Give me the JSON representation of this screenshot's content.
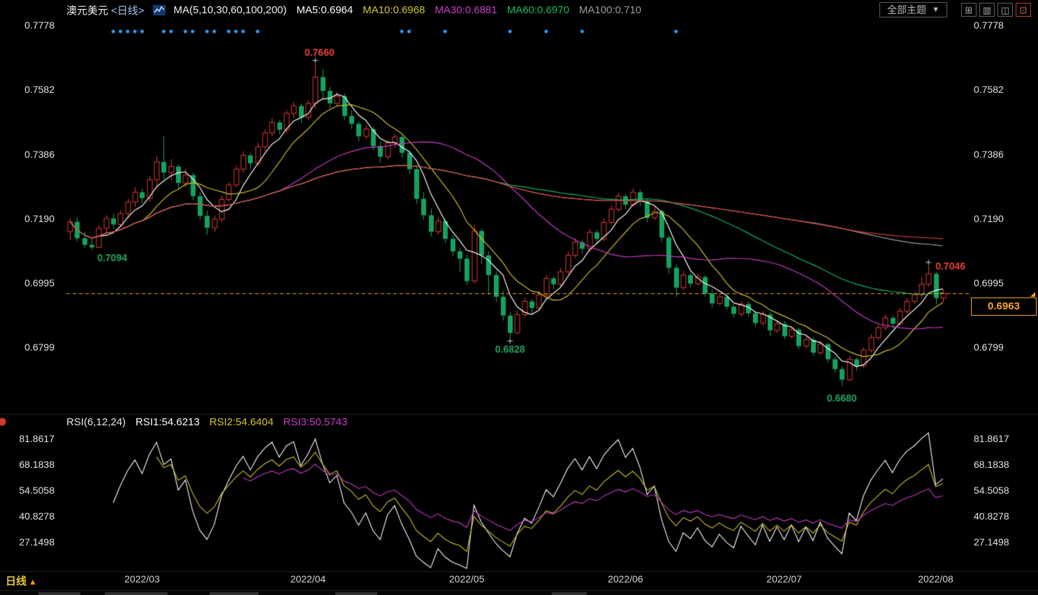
{
  "header": {
    "symbol": "澳元美元",
    "period_tag": "<日线>",
    "ma_legend": [
      {
        "label": "MA(5,10,30,60,100,200)",
        "color": "#eef0f5"
      },
      {
        "label": "MA5:0.6964",
        "color": "#ffffff"
      },
      {
        "label": "MA10:0.6968",
        "color": "#d4c42a"
      },
      {
        "label": "MA30:0.6881",
        "color": "#c93cc9"
      },
      {
        "label": "MA60:0.6970",
        "color": "#14b860"
      },
      {
        "label": "MA100:0.710",
        "color": "#9a9a9a"
      }
    ],
    "theme_button": {
      "label": "全部主题",
      "caret": "▼"
    },
    "window_buttons": [
      {
        "name": "layout-grid-button",
        "glyph": "⊞",
        "accent": false
      },
      {
        "name": "panel-bars-button",
        "glyph": "▥",
        "accent": false
      },
      {
        "name": "panel-split-button",
        "glyph": "◫",
        "accent": false
      },
      {
        "name": "panel-export-button",
        "glyph": "⊡",
        "accent": true
      }
    ]
  },
  "footer": {
    "period_label": "日线",
    "period_arrow": "▲"
  },
  "chart_data": {
    "type": "candlestick",
    "title": "澳元美元 日线 (AUD/USD Daily)",
    "colors": {
      "up": "#e23b33",
      "down": "#14a35f"
    },
    "price_axis_ticks": [
      {
        "label": "0.7778",
        "value": 0.7778
      },
      {
        "label": "0.7582",
        "value": 0.7582
      },
      {
        "label": "0.7386",
        "value": 0.7386
      },
      {
        "label": "0.7190",
        "value": 0.719
      },
      {
        "label": "0.6995",
        "value": 0.6995
      },
      {
        "label": "0.6799",
        "value": 0.6799
      }
    ],
    "x_ticks": [
      {
        "label": "2022/03",
        "idx": 10
      },
      {
        "label": "2022/04",
        "idx": 33
      },
      {
        "label": "2022/05",
        "idx": 55
      },
      {
        "label": "2022/06",
        "idx": 77
      },
      {
        "label": "2022/07",
        "idx": 99
      },
      {
        "label": "2022/08",
        "idx": 120
      }
    ],
    "current_price": {
      "value": "0.6963",
      "line_color": "#f5a522"
    },
    "ma_overlays": [
      {
        "period": 5,
        "color": "#ffffff"
      },
      {
        "period": 10,
        "color": "#d4c42a"
      },
      {
        "period": 30,
        "color": "#c93cc9"
      },
      {
        "period": 60,
        "color": "#14b860"
      },
      {
        "period": 100,
        "color": "#9aa0a6"
      },
      {
        "period": 200,
        "color": "#d23c32"
      }
    ],
    "annotations": [
      {
        "label": "0.7094",
        "idx": 3,
        "at": "low",
        "color": "#25a55f",
        "placement": "below-right",
        "cross": false
      },
      {
        "label": "0.7660",
        "idx": 34,
        "at": "high",
        "color": "#e8413a",
        "placement": "above-center",
        "cross": true
      },
      {
        "label": "0.6828",
        "idx": 61,
        "at": "low",
        "color": "#25a55f",
        "placement": "below-center",
        "cross": true
      },
      {
        "label": "0.6680",
        "idx": 107,
        "at": "low",
        "color": "#25a55f",
        "placement": "below-center",
        "cross": false
      },
      {
        "label": "0.7046",
        "idx": 119,
        "at": "high",
        "color": "#e8413a",
        "placement": "right",
        "cross": true
      }
    ],
    "signal_dots": {
      "color": "#2e9bf0",
      "indices": [
        6,
        7,
        8,
        9,
        10,
        13,
        14,
        16,
        17,
        19,
        20,
        22,
        23,
        24,
        26,
        46,
        47,
        52,
        61,
        66,
        71,
        84
      ]
    },
    "candles": [
      [
        0.715,
        0.719,
        0.7125,
        0.718
      ],
      [
        0.718,
        0.7195,
        0.712,
        0.713
      ],
      [
        0.713,
        0.715,
        0.71,
        0.711
      ],
      [
        0.711,
        0.713,
        0.7094,
        0.7102
      ],
      [
        0.7102,
        0.717,
        0.71,
        0.716
      ],
      [
        0.716,
        0.72,
        0.7145,
        0.719
      ],
      [
        0.719,
        0.7205,
        0.716,
        0.7172
      ],
      [
        0.7172,
        0.7215,
        0.7165,
        0.7205
      ],
      [
        0.7205,
        0.725,
        0.719,
        0.724
      ],
      [
        0.724,
        0.7285,
        0.7225,
        0.727
      ],
      [
        0.727,
        0.728,
        0.7235,
        0.7252
      ],
      [
        0.7252,
        0.732,
        0.724,
        0.7308
      ],
      [
        0.7308,
        0.738,
        0.729,
        0.7362
      ],
      [
        0.7362,
        0.744,
        0.731,
        0.733
      ],
      [
        0.733,
        0.737,
        0.7305,
        0.7348
      ],
      [
        0.7348,
        0.7355,
        0.728,
        0.7298
      ],
      [
        0.7298,
        0.734,
        0.7285,
        0.7322
      ],
      [
        0.7322,
        0.733,
        0.7245,
        0.7258
      ],
      [
        0.7258,
        0.727,
        0.7185,
        0.7198
      ],
      [
        0.7198,
        0.7215,
        0.714,
        0.7162
      ],
      [
        0.7162,
        0.72,
        0.715,
        0.7188
      ],
      [
        0.7188,
        0.726,
        0.718,
        0.7248
      ],
      [
        0.7248,
        0.73,
        0.724,
        0.7292
      ],
      [
        0.7292,
        0.735,
        0.7285,
        0.734
      ],
      [
        0.734,
        0.7395,
        0.733,
        0.7382
      ],
      [
        0.7382,
        0.739,
        0.734,
        0.7358
      ],
      [
        0.7358,
        0.742,
        0.735,
        0.7408
      ],
      [
        0.7408,
        0.7462,
        0.7395,
        0.745
      ],
      [
        0.745,
        0.7495,
        0.744,
        0.7482
      ],
      [
        0.7482,
        0.749,
        0.7445,
        0.746
      ],
      [
        0.746,
        0.752,
        0.745,
        0.751
      ],
      [
        0.751,
        0.7545,
        0.7495,
        0.7532
      ],
      [
        0.7532,
        0.754,
        0.748,
        0.7498
      ],
      [
        0.7498,
        0.755,
        0.749,
        0.754
      ],
      [
        0.754,
        0.766,
        0.7525,
        0.762
      ],
      [
        0.762,
        0.7645,
        0.7555,
        0.7578
      ],
      [
        0.7578,
        0.759,
        0.7525,
        0.754
      ],
      [
        0.754,
        0.7575,
        0.753,
        0.7562
      ],
      [
        0.7562,
        0.757,
        0.749,
        0.7502
      ],
      [
        0.7502,
        0.752,
        0.7462,
        0.7478
      ],
      [
        0.7478,
        0.7485,
        0.7425,
        0.744
      ],
      [
        0.744,
        0.7475,
        0.743,
        0.7462
      ],
      [
        0.7462,
        0.747,
        0.7398,
        0.741
      ],
      [
        0.741,
        0.7425,
        0.736,
        0.7378
      ],
      [
        0.7378,
        0.743,
        0.737,
        0.742
      ],
      [
        0.742,
        0.7448,
        0.7405,
        0.7438
      ],
      [
        0.7438,
        0.7445,
        0.7375,
        0.739
      ],
      [
        0.739,
        0.7398,
        0.7325,
        0.734
      ],
      [
        0.734,
        0.735,
        0.7235,
        0.725
      ],
      [
        0.725,
        0.727,
        0.7185,
        0.72
      ],
      [
        0.72,
        0.722,
        0.7135,
        0.715
      ],
      [
        0.715,
        0.7195,
        0.714,
        0.7182
      ],
      [
        0.7182,
        0.719,
        0.7115,
        0.7128
      ],
      [
        0.7128,
        0.714,
        0.7075,
        0.709
      ],
      [
        0.709,
        0.71,
        0.7028,
        0.7068
      ],
      [
        0.7068,
        0.708,
        0.6988,
        0.7
      ],
      [
        0.7,
        0.7172,
        0.6992,
        0.7152
      ],
      [
        0.7152,
        0.716,
        0.7052,
        0.7078
      ],
      [
        0.7078,
        0.709,
        0.6958,
        0.7018
      ],
      [
        0.7018,
        0.703,
        0.6935,
        0.6952
      ],
      [
        0.6952,
        0.697,
        0.688,
        0.6895
      ],
      [
        0.6895,
        0.6905,
        0.6828,
        0.6842
      ],
      [
        0.6842,
        0.691,
        0.6838,
        0.6898
      ],
      [
        0.6898,
        0.695,
        0.689,
        0.6938
      ],
      [
        0.6938,
        0.6945,
        0.69,
        0.6918
      ],
      [
        0.6918,
        0.697,
        0.691,
        0.6958
      ],
      [
        0.6958,
        0.7018,
        0.695,
        0.7008
      ],
      [
        0.7008,
        0.7015,
        0.6975,
        0.699
      ],
      [
        0.699,
        0.704,
        0.6982,
        0.7028
      ],
      [
        0.7028,
        0.709,
        0.702,
        0.7078
      ],
      [
        0.7078,
        0.713,
        0.707,
        0.7118
      ],
      [
        0.7118,
        0.7125,
        0.7082,
        0.7098
      ],
      [
        0.7098,
        0.7158,
        0.709,
        0.7148
      ],
      [
        0.7148,
        0.7155,
        0.7112,
        0.7128
      ],
      [
        0.7128,
        0.719,
        0.712,
        0.7178
      ],
      [
        0.7178,
        0.723,
        0.717,
        0.7218
      ],
      [
        0.7218,
        0.7268,
        0.721,
        0.7258
      ],
      [
        0.7258,
        0.7265,
        0.7218,
        0.7232
      ],
      [
        0.7232,
        0.7282,
        0.7225,
        0.727
      ],
      [
        0.727,
        0.7278,
        0.7228,
        0.7242
      ],
      [
        0.7242,
        0.725,
        0.7178,
        0.7192
      ],
      [
        0.7192,
        0.7225,
        0.7185,
        0.7212
      ],
      [
        0.7212,
        0.7218,
        0.7118,
        0.7132
      ],
      [
        0.7132,
        0.714,
        0.7022,
        0.704
      ],
      [
        0.704,
        0.705,
        0.6952,
        0.698
      ],
      [
        0.698,
        0.703,
        0.6972,
        0.7018
      ],
      [
        0.7018,
        0.7025,
        0.6982,
        0.6992
      ],
      [
        0.6992,
        0.7022,
        0.6985,
        0.7012
      ],
      [
        0.7012,
        0.7018,
        0.6952,
        0.6962
      ],
      [
        0.6962,
        0.6975,
        0.692,
        0.6932
      ],
      [
        0.6932,
        0.6962,
        0.6925,
        0.6952
      ],
      [
        0.6952,
        0.6958,
        0.6912,
        0.6922
      ],
      [
        0.6922,
        0.693,
        0.6888,
        0.69
      ],
      [
        0.69,
        0.6938,
        0.6892,
        0.693
      ],
      [
        0.693,
        0.6938,
        0.6892,
        0.6902
      ],
      [
        0.6902,
        0.691,
        0.686,
        0.6872
      ],
      [
        0.6872,
        0.6908,
        0.6865,
        0.6898
      ],
      [
        0.6898,
        0.6905,
        0.6832,
        0.685
      ],
      [
        0.685,
        0.688,
        0.6842,
        0.687
      ],
      [
        0.687,
        0.6878,
        0.6822,
        0.6832
      ],
      [
        0.6832,
        0.686,
        0.6825,
        0.6852
      ],
      [
        0.6852,
        0.6858,
        0.6792,
        0.6802
      ],
      [
        0.6802,
        0.6832,
        0.6795,
        0.6822
      ],
      [
        0.6822,
        0.6828,
        0.6772,
        0.6782
      ],
      [
        0.6782,
        0.6818,
        0.6775,
        0.6808
      ],
      [
        0.6808,
        0.6812,
        0.6752,
        0.6762
      ],
      [
        0.6762,
        0.677,
        0.6722,
        0.6732
      ],
      [
        0.6732,
        0.674,
        0.668,
        0.67
      ],
      [
        0.67,
        0.6772,
        0.6695,
        0.6762
      ],
      [
        0.6762,
        0.6768,
        0.6728,
        0.6742
      ],
      [
        0.6742,
        0.6798,
        0.6735,
        0.679
      ],
      [
        0.679,
        0.6838,
        0.6782,
        0.6828
      ],
      [
        0.6828,
        0.6868,
        0.682,
        0.6858
      ],
      [
        0.6858,
        0.6898,
        0.685,
        0.6888
      ],
      [
        0.6888,
        0.6895,
        0.6858,
        0.687
      ],
      [
        0.687,
        0.6918,
        0.6862,
        0.6908
      ],
      [
        0.6908,
        0.6948,
        0.69,
        0.6938
      ],
      [
        0.6938,
        0.6968,
        0.693,
        0.6958
      ],
      [
        0.6958,
        0.7012,
        0.695,
        0.699
      ],
      [
        0.699,
        0.7046,
        0.6982,
        0.7022
      ],
      [
        0.7022,
        0.7028,
        0.6928,
        0.6948
      ],
      [
        0.6948,
        0.6975,
        0.6935,
        0.6963
      ]
    ],
    "rsi": {
      "periods": [
        6,
        12,
        24
      ],
      "colors": [
        "#ffffff",
        "#d4c42a",
        "#c93cc9"
      ],
      "legend": [
        {
          "label": "RSI(6,12,24)",
          "color": "#e8e8e8"
        },
        {
          "label": "RSI1:54.6213",
          "color": "#ffffff"
        },
        {
          "label": "RSI2:54.6404",
          "color": "#d4c42a"
        },
        {
          "label": "RSI3:50.5743",
          "color": "#c93cc9"
        }
      ],
      "axis_ticks": [
        {
          "label": "81.8617",
          "value": 81.8617
        },
        {
          "label": "68.1838",
          "value": 68.1838
        },
        {
          "label": "54.5058",
          "value": 54.5058
        },
        {
          "label": "40.8278",
          "value": 40.8278
        },
        {
          "label": "27.1498",
          "value": 27.1498
        }
      ]
    }
  }
}
